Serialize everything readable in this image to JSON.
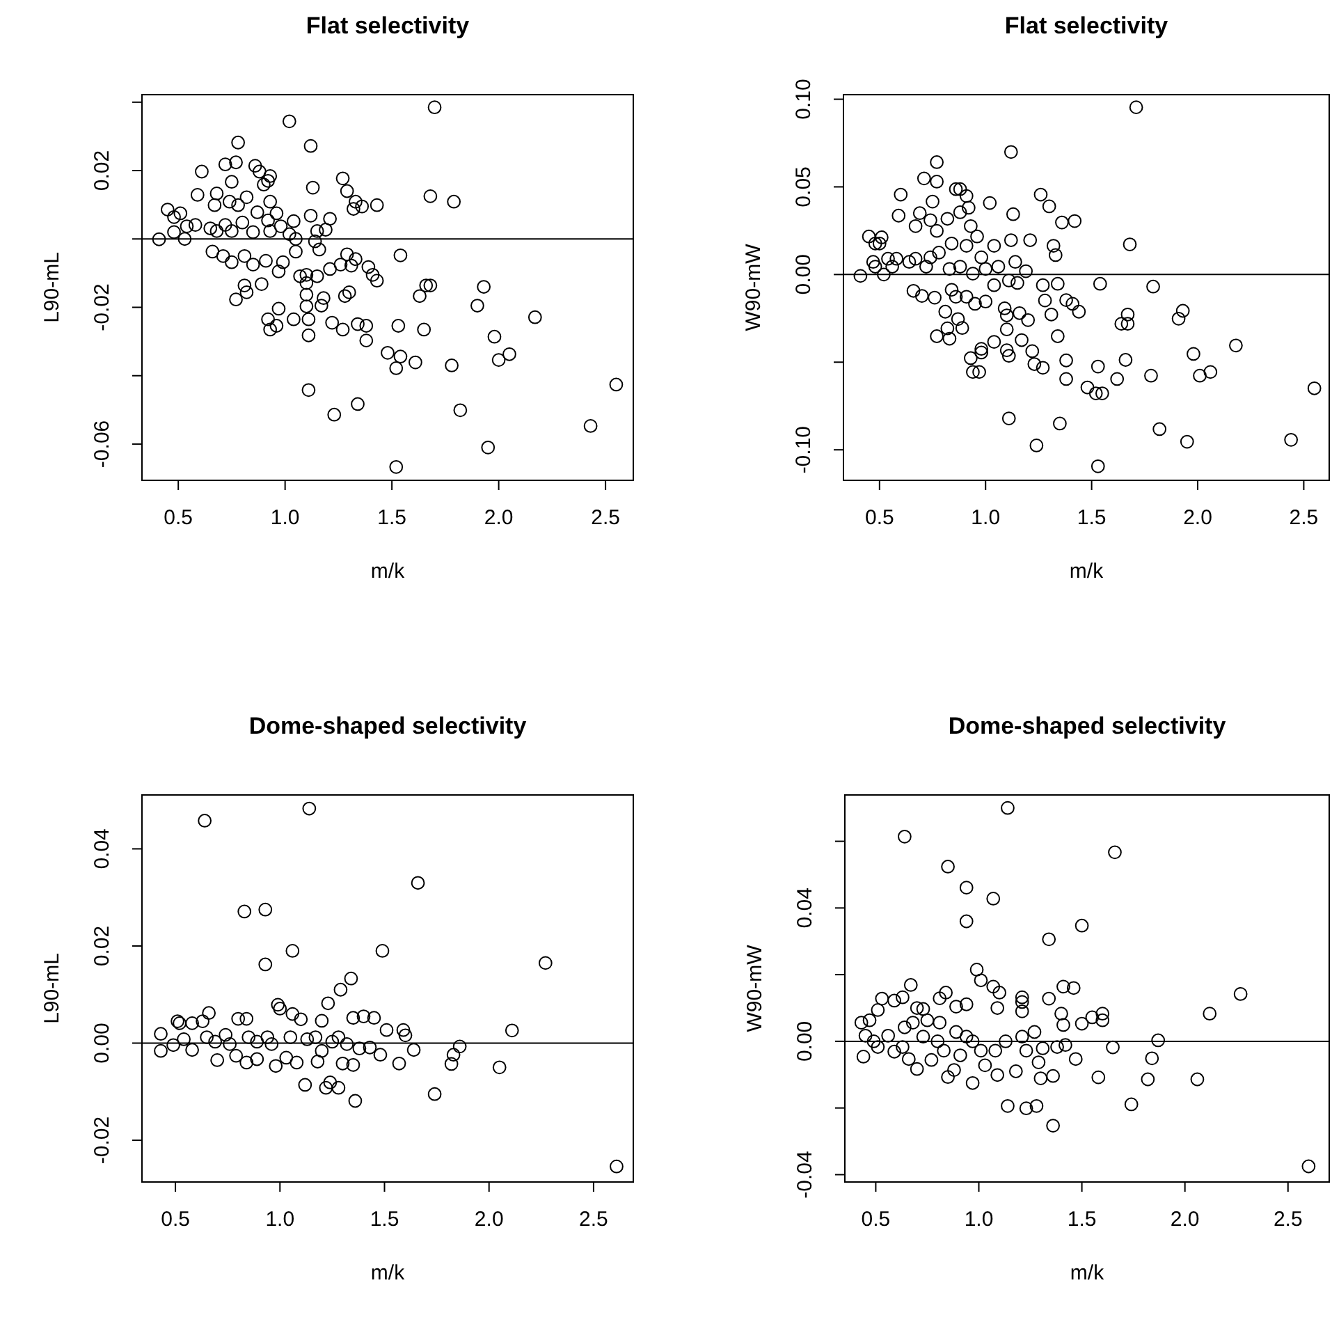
{
  "chart_data": [
    {
      "type": "scatter",
      "title": "Flat selectivity",
      "xlabel": "m/k",
      "ylabel": "L90-mL",
      "marker": "circle",
      "xlim": [
        0.33,
        2.63
      ],
      "xticks": [
        {
          "value": 0.5,
          "label": "0.5"
        },
        {
          "value": 1,
          "label": "1.0"
        },
        {
          "value": 1.5,
          "label": "1.5"
        },
        {
          "value": 2,
          "label": "2.0"
        },
        {
          "value": 2.5,
          "label": "2.5"
        }
      ],
      "ylim": [
        -0.0706,
        0.0422
      ],
      "yticks": [
        {
          "value": 0.04,
          "label": null
        },
        {
          "value": 0.02,
          "label": "0.02"
        },
        {
          "value": 0,
          "label": null
        },
        {
          "value": -0.02,
          "label": "-0.02"
        },
        {
          "value": -0.04,
          "label": null
        },
        {
          "value": -0.06,
          "label": "-0.06"
        }
      ],
      "ref_lines": [
        {
          "axis": "y",
          "value": 0,
          "color": "#000000"
        }
      ],
      "series": [
        {
          "color": "#000000",
          "x": [
            1.7,
            1.02,
            0.78,
            1.12,
            0.61,
            0.72,
            0.77,
            0.86,
            0.88,
            0.93,
            0.92,
            0.9,
            0.75,
            1.13,
            1.27,
            1.29,
            0.59,
            0.68,
            0.82,
            0.74,
            0.93,
            1.33,
            1.32,
            1.36,
            1.43,
            1.68,
            1.79,
            0.67,
            0.78,
            0.45,
            0.51,
            0.48,
            0.54,
            0.58,
            0.48,
            0.41,
            0.53,
            0.87,
            0.96,
            1.12,
            1.21,
            1.04,
            0.92,
            0.65,
            0.68,
            0.72,
            0.75,
            0.8,
            0.85,
            0.93,
            0.98,
            1.02,
            1.05,
            1.15,
            1.19,
            1.14,
            1.16,
            0.66,
            0.71,
            0.75,
            0.81,
            0.85,
            0.91,
            0.97,
            0.99,
            1.05,
            1.29,
            1.31,
            1.26,
            1.33,
            1.21,
            1.39,
            1.41,
            1.43,
            1.54,
            1.07,
            1.1,
            1.15,
            0.81,
            0.82,
            0.89,
            0.77,
            1.1,
            1.1,
            1.18,
            1.28,
            1.3,
            1.17,
            1.1,
            1.63,
            1.66,
            1.68,
            1.93,
            1.9,
            2.17,
            0.97,
            0.92,
            0.93,
            0.96,
            1.04,
            1.11,
            1.11,
            1.22,
            1.27,
            1.34,
            1.38,
            1.38,
            1.53,
            1.65,
            1.98,
            1.48,
            1.54,
            1.52,
            1.61,
            1.78,
            2.0,
            2.05,
            2.55,
            1.11,
            1.34,
            1.23,
            1.82,
            1.95,
            2.43,
            1.52
          ],
          "values": [
            0.0385,
            0.0344,
            0.0282,
            0.0272,
            0.0197,
            0.0218,
            0.0224,
            0.0214,
            0.0197,
            0.0184,
            0.017,
            0.0159,
            0.0167,
            0.015,
            0.0177,
            0.014,
            0.0129,
            0.0133,
            0.0122,
            0.0109,
            0.0109,
            0.0109,
            0.0088,
            0.0095,
            0.0099,
            0.0125,
            0.0109,
            0.0099,
            0.0099,
            0.0086,
            0.0075,
            0.0064,
            0.0037,
            0.0041,
            0.002,
            -0.0001,
            0.0,
            0.0078,
            0.0075,
            0.0068,
            0.0059,
            0.0052,
            0.0054,
            0.0031,
            0.0023,
            0.0041,
            0.0023,
            0.0048,
            0.002,
            0.0023,
            0.0037,
            0.0014,
            0.0,
            0.0023,
            0.0027,
            -0.0007,
            -0.0031,
            -0.0037,
            -0.005,
            -0.0068,
            -0.005,
            -0.0075,
            -0.0064,
            -0.0095,
            -0.0068,
            -0.0037,
            -0.0045,
            -0.0078,
            -0.0075,
            -0.0059,
            -0.0088,
            -0.0082,
            -0.0105,
            -0.0122,
            -0.0048,
            -0.0109,
            -0.0105,
            -0.0109,
            -0.0136,
            -0.0156,
            -0.0132,
            -0.0177,
            -0.0129,
            -0.0163,
            -0.0173,
            -0.0167,
            -0.0156,
            -0.0195,
            -0.0197,
            -0.0167,
            -0.0136,
            -0.0136,
            -0.014,
            -0.0195,
            -0.0229,
            -0.0204,
            -0.0235,
            -0.0265,
            -0.0254,
            -0.0235,
            -0.0235,
            -0.0282,
            -0.0245,
            -0.0265,
            -0.0249,
            -0.0254,
            -0.0297,
            -0.0254,
            -0.0265,
            -0.0286,
            -0.0333,
            -0.0344,
            -0.0378,
            -0.0361,
            -0.037,
            -0.0354,
            -0.0337,
            -0.0426,
            -0.0442,
            -0.0483,
            -0.0514,
            -0.0501,
            -0.061,
            -0.0547,
            -0.0667
          ]
        }
      ]
    },
    {
      "type": "scatter",
      "title": "Flat selectivity",
      "xlabel": "m/k",
      "ylabel": "W90-mW",
      "marker": "circle",
      "xlim": [
        0.33,
        2.62
      ],
      "xticks": [
        {
          "value": 0.5,
          "label": "0.5"
        },
        {
          "value": 1,
          "label": "1.0"
        },
        {
          "value": 1.5,
          "label": "1.5"
        },
        {
          "value": 2,
          "label": "2.0"
        },
        {
          "value": 2.5,
          "label": "2.5"
        }
      ],
      "ylim": [
        -0.1174,
        0.1026
      ],
      "yticks": [
        {
          "value": 0.1,
          "label": "0.10"
        },
        {
          "value": 0.05,
          "label": "0.05"
        },
        {
          "value": 0,
          "label": "0.00"
        },
        {
          "value": -0.05,
          "label": null
        },
        {
          "value": -0.1,
          "label": "-0.10"
        }
      ],
      "ref_lines": [
        {
          "axis": "y",
          "value": 0,
          "color": "#000000"
        }
      ],
      "series": [
        {
          "color": "#000000",
          "x": [
            1.71,
            1.12,
            0.77,
            0.71,
            0.77,
            0.6,
            0.59,
            0.86,
            0.88,
            0.91,
            0.92,
            1.02,
            1.13,
            1.26,
            1.3,
            1.36,
            1.42,
            0.69,
            0.75,
            0.74,
            0.82,
            0.88,
            0.93,
            0.67,
            0.96,
            0.77,
            0.45,
            0.51,
            0.48,
            0.5,
            0.47,
            0.48,
            0.52,
            0.41,
            0.54,
            0.58,
            0.56,
            0.64,
            0.67,
            0.72,
            0.74,
            0.78,
            0.84,
            0.91,
            0.83,
            0.88,
            0.94,
            0.98,
            1.04,
            1.0,
            1.06,
            1.12,
            1.21,
            1.32,
            1.33,
            1.14,
            1.19,
            1.68,
            1.11,
            1.15,
            1.04,
            0.66,
            0.7,
            0.76,
            0.84,
            0.86,
            0.91,
            0.95,
            1.0,
            1.09,
            1.1,
            1.16,
            1.2,
            1.27,
            1.28,
            1.31,
            1.34,
            1.38,
            1.41,
            1.44,
            1.54,
            1.79,
            1.67,
            1.64,
            1.67,
            1.93,
            1.91,
            0.81,
            0.82,
            0.77,
            0.83,
            0.87,
            0.89,
            1.1,
            1.04,
            1.17,
            1.34,
            0.98,
            0.98,
            0.93,
            0.94,
            0.97,
            1.1,
            1.11,
            1.22,
            1.23,
            1.27,
            1.38,
            1.38,
            1.48,
            1.52,
            1.55,
            1.53,
            1.62,
            1.66,
            1.78,
            1.98,
            2.01,
            2.06,
            2.18,
            2.55,
            1.11,
            1.35,
            1.24,
            1.82,
            1.95,
            2.44,
            1.53
          ],
          "values": [
            0.0954,
            0.0699,
            0.0641,
            0.0548,
            0.053,
            0.0456,
            0.0336,
            0.0487,
            0.0487,
            0.0448,
            0.0381,
            0.0408,
            0.0344,
            0.0456,
            0.0389,
            0.0297,
            0.0305,
            0.035,
            0.0416,
            0.031,
            0.0318,
            0.0355,
            0.0276,
            0.0276,
            0.0217,
            0.0249,
            0.0217,
            0.0212,
            0.0177,
            0.0177,
            0.0072,
            0.0045,
            0.0,
            -0.0008,
            0.009,
            0.009,
            0.0045,
            0.0072,
            0.009,
            0.0045,
            0.0098,
            0.0125,
            0.0177,
            0.0164,
            0.0032,
            0.0045,
            0.0005,
            0.0098,
            0.0164,
            0.0032,
            0.0045,
            0.0196,
            0.0196,
            0.0164,
            0.0111,
            0.0072,
            0.0019,
            0.0172,
            -0.0034,
            -0.0048,
            -0.0061,
            -0.0093,
            -0.0122,
            -0.0132,
            -0.0087,
            -0.0127,
            -0.0127,
            -0.0167,
            -0.0154,
            -0.0193,
            -0.0233,
            -0.022,
            -0.026,
            -0.0061,
            -0.0148,
            -0.0228,
            -0.0053,
            -0.0146,
            -0.0167,
            -0.0212,
            -0.0053,
            -0.0069,
            -0.0228,
            -0.0281,
            -0.0281,
            -0.0207,
            -0.0252,
            -0.0212,
            -0.0307,
            -0.0352,
            -0.0366,
            -0.0254,
            -0.0305,
            -0.0313,
            -0.0384,
            -0.0374,
            -0.0352,
            -0.0424,
            -0.0445,
            -0.0477,
            -0.0556,
            -0.0556,
            -0.0432,
            -0.0464,
            -0.0437,
            -0.0511,
            -0.0532,
            -0.049,
            -0.0596,
            -0.0644,
            -0.0678,
            -0.0678,
            -0.0525,
            -0.0596,
            -0.0487,
            -0.0577,
            -0.0453,
            -0.0577,
            -0.0556,
            -0.0405,
            -0.0649,
            -0.0821,
            -0.085,
            -0.0975,
            -0.0882,
            -0.0954,
            -0.0943,
            -0.1094
          ]
        }
      ]
    },
    {
      "type": "scatter",
      "title": "Dome-shaped selectivity",
      "xlabel": "m/k",
      "ylabel": "L90-mL",
      "marker": "circle",
      "xlim": [
        0.34,
        2.69
      ],
      "xticks": [
        {
          "value": 0.5,
          "label": "0.5"
        },
        {
          "value": 1,
          "label": "1.0"
        },
        {
          "value": 1.5,
          "label": "1.5"
        },
        {
          "value": 2,
          "label": "2.0"
        },
        {
          "value": 2.5,
          "label": "2.5"
        }
      ],
      "ylim": [
        -0.0286,
        0.0511
      ],
      "yticks": [
        {
          "value": 0.04,
          "label": "0.04"
        },
        {
          "value": 0.02,
          "label": "0.02"
        },
        {
          "value": 0,
          "label": "0.00"
        },
        {
          "value": -0.02,
          "label": "-0.02"
        }
      ],
      "ref_lines": [
        {
          "axis": "y",
          "value": 0,
          "color": "#000000"
        }
      ],
      "series": [
        {
          "color": "#000000",
          "x": [
            1.14,
            0.64,
            1.66,
            0.83,
            0.93,
            0.93,
            1.06,
            1.49,
            2.27,
            1.34,
            1.29,
            1.23,
            0.99,
            1.0,
            1.06,
            1.1,
            0.66,
            0.51,
            0.52,
            0.58,
            0.63,
            0.8,
            0.84,
            1.2,
            1.35,
            1.4,
            1.45,
            1.51,
            1.59,
            1.6,
            2.11,
            0.43,
            0.49,
            0.43,
            0.58,
            0.54,
            0.65,
            0.69,
            0.74,
            0.76,
            0.7,
            0.79,
            0.85,
            0.89,
            0.84,
            0.89,
            0.94,
            0.96,
            0.98,
            1.03,
            1.08,
            1.05,
            1.13,
            1.17,
            1.2,
            1.18,
            1.25,
            1.28,
            1.32,
            1.3,
            1.35,
            1.38,
            1.43,
            1.48,
            1.57,
            1.64,
            1.82,
            1.83,
            1.86,
            2.05,
            1.12,
            1.22,
            1.24,
            1.28,
            1.36,
            1.74,
            2.61
          ],
          "values": [
            0.0483,
            0.0458,
            0.033,
            0.0271,
            0.0275,
            0.0162,
            0.019,
            0.019,
            0.0165,
            0.0133,
            0.011,
            0.0082,
            0.0079,
            0.0071,
            0.006,
            0.0049,
            0.0062,
            0.0045,
            0.0041,
            0.0041,
            0.0045,
            0.005,
            0.005,
            0.0046,
            0.0052,
            0.0055,
            0.0052,
            0.0027,
            0.0027,
            0.0016,
            0.0026,
            0.0019,
            -0.0004,
            -0.0016,
            -0.0014,
            0.0008,
            0.0012,
            0.0003,
            0.0017,
            -0.0002,
            -0.0035,
            -0.0026,
            0.0012,
            0.0003,
            -0.004,
            -0.0033,
            0.0012,
            -0.0002,
            -0.0047,
            -0.003,
            -0.004,
            0.0012,
            0.0008,
            0.0012,
            -0.0016,
            -0.0038,
            0.0003,
            0.0012,
            -0.0002,
            -0.0042,
            -0.0045,
            -0.0011,
            -0.0009,
            -0.0024,
            -0.0042,
            -0.0014,
            -0.0043,
            -0.0024,
            -0.0007,
            -0.005,
            -0.0086,
            -0.0092,
            -0.0081,
            -0.0092,
            -0.0119,
            -0.0105,
            -0.0254
          ]
        }
      ]
    },
    {
      "type": "scatter",
      "title": "Dome-shaped selectivity",
      "xlabel": "m/k",
      "ylabel": "W90-mW",
      "marker": "circle",
      "xlim": [
        0.35,
        2.7
      ],
      "xticks": [
        {
          "value": 0.5,
          "label": "0.5"
        },
        {
          "value": 1,
          "label": "1.0"
        },
        {
          "value": 1.5,
          "label": "1.5"
        },
        {
          "value": 2,
          "label": "2.0"
        },
        {
          "value": 2.5,
          "label": "2.5"
        }
      ],
      "ylim": [
        -0.0422,
        0.0739
      ],
      "yticks": [
        {
          "value": 0.06,
          "label": null
        },
        {
          "value": 0.04,
          "label": "0.04"
        },
        {
          "value": 0.02,
          "label": null
        },
        {
          "value": 0,
          "label": "0.00"
        },
        {
          "value": -0.02,
          "label": null
        },
        {
          "value": -0.04,
          "label": "-0.04"
        }
      ],
      "ref_lines": [
        {
          "axis": "y",
          "value": 0,
          "color": "#000000"
        }
      ],
      "series": [
        {
          "color": "#000000",
          "x": [
            1.14,
            0.64,
            1.66,
            0.85,
            0.94,
            1.07,
            0.94,
            1.5,
            1.34,
            0.99,
            1.01,
            1.07,
            1.1,
            0.67,
            0.63,
            0.53,
            0.59,
            0.51,
            0.84,
            0.81,
            0.94,
            0.89,
            0.7,
            0.73,
            1.09,
            1.21,
            1.21,
            1.21,
            1.34,
            1.41,
            1.46,
            1.4,
            1.41,
            1.5,
            1.55,
            1.6,
            1.6,
            2.12,
            2.27,
            0.43,
            0.47,
            0.45,
            0.44,
            0.49,
            0.51,
            0.56,
            0.59,
            0.64,
            0.63,
            0.66,
            0.68,
            0.7,
            0.73,
            0.75,
            0.77,
            0.8,
            0.81,
            0.83,
            0.85,
            0.88,
            0.89,
            0.91,
            0.94,
            0.97,
            0.97,
            1.01,
            1.03,
            1.08,
            1.09,
            1.13,
            1.14,
            1.18,
            1.21,
            1.23,
            1.23,
            1.28,
            1.27,
            1.29,
            1.3,
            1.31,
            1.36,
            1.36,
            1.38,
            1.42,
            1.47,
            1.58,
            1.65,
            1.74,
            1.82,
            1.84,
            1.87,
            2.06,
            2.6
          ],
          "values": [
            0.07,
            0.0614,
            0.0567,
            0.0524,
            0.0461,
            0.0428,
            0.036,
            0.0347,
            0.0306,
            0.0215,
            0.0183,
            0.0164,
            0.0146,
            0.0169,
            0.0132,
            0.0128,
            0.0122,
            0.0094,
            0.0146,
            0.0129,
            0.0111,
            0.0104,
            0.01,
            0.0097,
            0.01,
            0.0132,
            0.0118,
            0.009,
            0.0128,
            0.0164,
            0.016,
            0.0083,
            0.0049,
            0.0053,
            0.0072,
            0.0083,
            0.0063,
            0.0083,
            0.0142,
            0.0056,
            0.0063,
            0.0017,
            -0.0046,
            0.0,
            -0.0017,
            0.0017,
            -0.0031,
            0.0042,
            -0.0017,
            -0.0053,
            0.0056,
            -0.0083,
            0.0014,
            0.0063,
            -0.0056,
            0.0,
            0.0056,
            -0.0028,
            -0.0107,
            -0.0086,
            0.0028,
            -0.0042,
            0.0014,
            -0.0125,
            0.0,
            -0.0028,
            -0.0072,
            -0.0028,
            -0.0101,
            0.0,
            -0.0194,
            -0.009,
            0.0014,
            -0.0028,
            -0.0201,
            -0.0194,
            0.0028,
            -0.0063,
            -0.0111,
            -0.0021,
            -0.0104,
            -0.0253,
            -0.0017,
            -0.0011,
            -0.0053,
            -0.0108,
            -0.0018,
            -0.0189,
            -0.0114,
            -0.0051,
            0.0003,
            -0.0114,
            -0.0375
          ]
        }
      ]
    }
  ]
}
